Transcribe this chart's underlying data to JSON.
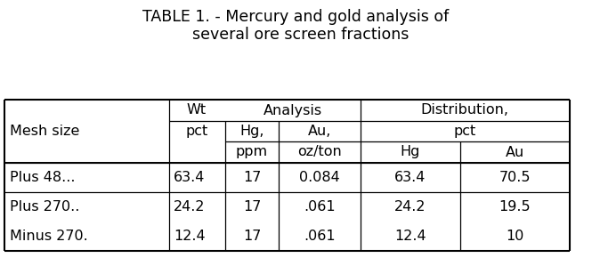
{
  "title_line1": "TABLE 1. - Mercury and gold analysis of",
  "title_line2": "  several ore screen fractions",
  "background_color": "#ffffff",
  "font_family": "Courier New",
  "title_fontsize": 12.5,
  "table_fontsize": 11.5,
  "rows": [
    [
      "Plus 48...",
      "63.4",
      "17",
      "0.084",
      "63.4",
      "70.5"
    ],
    [
      "Plus 270..",
      "24.2",
      "17",
      ".061",
      "24.2",
      "19.5"
    ],
    [
      "Minus 270.",
      "12.4",
      "17",
      ".061",
      "12.4",
      "10"
    ]
  ],
  "fig_w": 6.65,
  "fig_h": 2.9,
  "dpi": 100
}
